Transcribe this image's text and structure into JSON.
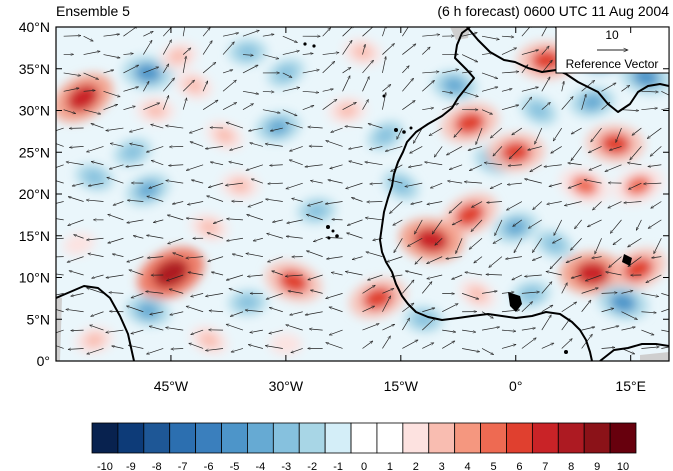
{
  "header": {
    "title_left": "Ensemble 5",
    "title_right": "(6 h forecast) 0600 UTC 11 Aug 2004"
  },
  "axes": {
    "lat_ticks": [
      "40°N",
      "35°N",
      "30°N",
      "25°N",
      "20°N",
      "15°N",
      "10°N",
      "5°N",
      "0°"
    ],
    "lat_values": [
      40,
      35,
      30,
      25,
      20,
      15,
      10,
      5,
      0
    ],
    "lon_ticks": [
      "45°W",
      "30°W",
      "15°W",
      "0°",
      "15°E"
    ],
    "lon_values": [
      -45,
      -30,
      -15,
      0,
      15
    ],
    "lon_range": [
      -60,
      20
    ],
    "lat_range": [
      0,
      40
    ]
  },
  "reference_vector": {
    "value_label": "10",
    "caption": "Reference Vector"
  },
  "colorbar": {
    "labels": [
      "-10",
      "-9",
      "-8",
      "-7",
      "-6",
      "-5",
      "-4",
      "-3",
      "-2",
      "-1",
      "0",
      "1",
      "2",
      "3",
      "4",
      "5",
      "6",
      "7",
      "8",
      "9",
      "10"
    ],
    "colors": [
      "#08224f",
      "#0d3b78",
      "#1e5796",
      "#2c6fb0",
      "#3a7fbd",
      "#4d95c9",
      "#66aad3",
      "#86c1de",
      "#a8d6e6",
      "#d4eef8",
      "#ffffff",
      "#ffffff",
      "#fde2e0",
      "#f9bdb1",
      "#f5977f",
      "#ee6a52",
      "#e0402f",
      "#c92327",
      "#ad1a22",
      "#8b1218",
      "#67000d"
    ]
  },
  "field": {
    "blobs": [
      {
        "lon": -56.5,
        "lat": 31.5,
        "v": 7
      },
      {
        "lon": -48,
        "lat": 34.5,
        "v": -5
      },
      {
        "lon": -44,
        "lat": 36.5,
        "v": 3
      },
      {
        "lon": -42,
        "lat": 33,
        "v": 3
      },
      {
        "lon": -35,
        "lat": 37,
        "v": -3
      },
      {
        "lon": -30,
        "lat": 34.5,
        "v": -3
      },
      {
        "lon": -20,
        "lat": 37,
        "v": 3
      },
      {
        "lon": -31,
        "lat": 28,
        "v": -4
      },
      {
        "lon": -38,
        "lat": 27,
        "v": 3
      },
      {
        "lon": -47,
        "lat": 30,
        "v": 3
      },
      {
        "lon": -50,
        "lat": 25,
        "v": -3
      },
      {
        "lon": -55,
        "lat": 22,
        "v": -3
      },
      {
        "lon": -22,
        "lat": 30,
        "v": 3
      },
      {
        "lon": -17,
        "lat": 27,
        "v": -3
      },
      {
        "lon": -8,
        "lat": 33,
        "v": -4
      },
      {
        "lon": -6,
        "lat": 28.5,
        "v": 6
      },
      {
        "lon": -3,
        "lat": 24,
        "v": -3
      },
      {
        "lon": 4,
        "lat": 36,
        "v": 6
      },
      {
        "lon": 12,
        "lat": 37,
        "v": -6
      },
      {
        "lon": 17,
        "lat": 34,
        "v": -5
      },
      {
        "lon": 10,
        "lat": 31,
        "v": -4
      },
      {
        "lon": 3,
        "lat": 30,
        "v": -3
      },
      {
        "lon": 13,
        "lat": 26,
        "v": 6
      },
      {
        "lon": 16,
        "lat": 21,
        "v": 5
      },
      {
        "lon": 9,
        "lat": 21,
        "v": 5
      },
      {
        "lon": 0,
        "lat": 25,
        "v": 6
      },
      {
        "lon": -6,
        "lat": 17.5,
        "v": 6
      },
      {
        "lon": -11,
        "lat": 14.5,
        "v": 7
      },
      {
        "lon": 0,
        "lat": 16,
        "v": -4
      },
      {
        "lon": 5,
        "lat": 14,
        "v": -3
      },
      {
        "lon": 10,
        "lat": 10.5,
        "v": 7
      },
      {
        "lon": 16,
        "lat": 11,
        "v": 6
      },
      {
        "lon": 14,
        "lat": 7,
        "v": -5
      },
      {
        "lon": 2,
        "lat": 8,
        "v": -3
      },
      {
        "lon": -5,
        "lat": 8,
        "v": 3
      },
      {
        "lon": -12,
        "lat": 5,
        "v": -3
      },
      {
        "lon": -18,
        "lat": 7.5,
        "v": 6
      },
      {
        "lon": -29,
        "lat": 9.5,
        "v": 6
      },
      {
        "lon": -35,
        "lat": 7,
        "v": -3
      },
      {
        "lon": -45,
        "lat": 10.5,
        "v": 8
      },
      {
        "lon": -48,
        "lat": 6,
        "v": -4
      },
      {
        "lon": -55,
        "lat": 2.5,
        "v": 3
      },
      {
        "lon": -40,
        "lat": 2.5,
        "v": 3
      },
      {
        "lon": -30,
        "lat": 2,
        "v": 2
      },
      {
        "lon": -48,
        "lat": 20.5,
        "v": -4
      },
      {
        "lon": -40,
        "lat": 16,
        "v": 3
      },
      {
        "lon": -26,
        "lat": 18,
        "v": -3
      },
      {
        "lon": -15,
        "lat": 21,
        "v": -3
      },
      {
        "lon": -36,
        "lat": 21,
        "v": 3
      },
      {
        "lon": -57,
        "lat": 14,
        "v": 2
      }
    ]
  }
}
